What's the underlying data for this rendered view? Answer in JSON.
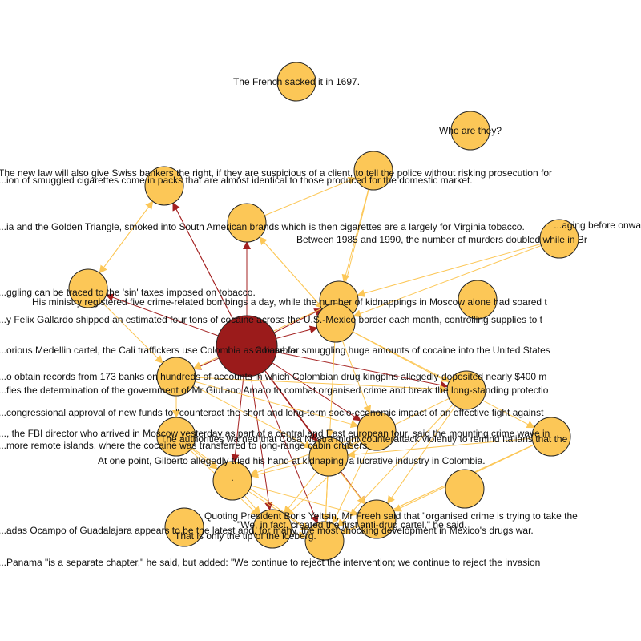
{
  "colors": {
    "center_node": "#9b1b1b",
    "node": "#fcc757",
    "node_stroke": "#222222",
    "edge_center": "#a32020",
    "edge": "#fcc757"
  },
  "nodes": [
    {
      "id": "center",
      "type": "center",
      "label": "Colombia"
    },
    {
      "id": "n1",
      "label": "The French sacked it in 1697."
    },
    {
      "id": "n2",
      "label": "Who are they?"
    },
    {
      "id": "n3",
      "label": "The new law will also give Swiss bankers the right, if they are suspicious of a client, to tell the police without risking prosecution for"
    },
    {
      "id": "n4",
      "label": "...ion of smuggled cigarettes come in packs that are almost identical to those produced for the domestic market."
    },
    {
      "id": "n5",
      "label": "...ia and the Golden Triangle, smoked into South American brands which is then cigarettes are a largely for Virginia tobacco."
    },
    {
      "id": "n6",
      "label": "...aging before onwa"
    },
    {
      "id": "n7",
      "label": "Between 1985 and 1990, the number of murders doubled while in Br"
    },
    {
      "id": "n8",
      "label": "...ggling can be traced to the 'sin' taxes imposed on tobacco."
    },
    {
      "id": "n9",
      "label": "His ministry registered five crime-related bombings a day, while the number of kidnappings in Moscow alone had soared t"
    },
    {
      "id": "n10",
      "label": "...y Felix Gallardo shipped an estimated four tons of cocaine across the U.S.-Mexico border each month, controlling supplies to t"
    },
    {
      "id": "n11",
      "label": "...orious Medellin cartel, the Cali traffickers use Colombia as a base for smuggling huge amounts of cocaine into the United States"
    },
    {
      "id": "n12",
      "label": "...o obtain records from 173 banks on hundreds of accounts in which Colombian drug kingpins allegedly deposited nearly $400 m"
    },
    {
      "id": "n13",
      "label": "...fies the determination of the government of Mr Giuliano Amato to combat organised crime and break the long-standing protectio"
    },
    {
      "id": "n14",
      "label": "...congressional approval of new funds to \"counteract the short and long-term socio-economic impact of an effective fight against"
    },
    {
      "id": "n15",
      "label": "..., the FBI director who arrived in Moscow yesterday as part of a central and East european tour, said the mounting crime wave in"
    },
    {
      "id": "n16",
      "label": "...more remote islands, where the cocaine was transferred to long-range cabin cruisers."
    },
    {
      "id": "n17",
      "label": "The authorities warned that Cosa Nostra might counterattack violently to remind Italians that the"
    },
    {
      "id": "n18",
      "label": "At one point, Gilberto allegedly tried his hand at kidnaping, a lucrative industry in Colombia."
    },
    {
      "id": "n19",
      "label": "."
    },
    {
      "id": "n20",
      "label": "Quoting President Boris Yeltsin, Mr Freeh said that \"organised crime is trying to take the"
    },
    {
      "id": "n21",
      "label": "...adas Ocampo of Guadalajara appears to be the latest and, for many, the most shocking development in Mexico's drugs war."
    },
    {
      "id": "n22",
      "label": "\"We, in fact, created the first anti-drug cartel,\" he said."
    },
    {
      "id": "n23",
      "label": "That is only the tip of the iceberg."
    },
    {
      "id": "n24",
      "label": "...Panama \"is a separate chapter,\" he said, but added: \"We continue to reject the intervention; we continue to reject the invasion"
    },
    {
      "id": "n25",
      "label": ""
    },
    {
      "id": "n26",
      "label": ""
    },
    {
      "id": "n27",
      "label": ""
    },
    {
      "id": "n28",
      "label": ""
    }
  ],
  "edges": [
    [
      "center",
      "n3"
    ],
    [
      "center",
      "n5"
    ],
    [
      "center",
      "n9"
    ],
    [
      "center",
      "n10"
    ],
    [
      "center",
      "n12"
    ],
    [
      "center",
      "n13"
    ],
    [
      "center",
      "n15"
    ],
    [
      "center",
      "n17"
    ],
    [
      "center",
      "n19"
    ],
    [
      "center",
      "n20"
    ],
    [
      "center",
      "n22"
    ],
    [
      "center",
      "n23"
    ],
    [
      "center",
      "n8"
    ],
    [
      "center",
      "n4"
    ],
    [
      "center",
      "n18"
    ],
    [
      "n4",
      "n3"
    ],
    [
      "n4",
      "n8"
    ],
    [
      "n8",
      "n4"
    ],
    [
      "n5",
      "n10"
    ],
    [
      "n5",
      "n27"
    ],
    [
      "n7",
      "n10"
    ],
    [
      "n6",
      "n9"
    ],
    [
      "n9",
      "n10"
    ],
    [
      "n10",
      "n13"
    ],
    [
      "n10",
      "n14"
    ],
    [
      "n10",
      "n15"
    ],
    [
      "n10",
      "n17"
    ],
    [
      "n12",
      "n13"
    ],
    [
      "n12",
      "n15"
    ],
    [
      "n13",
      "n17"
    ],
    [
      "n14",
      "n17"
    ],
    [
      "n14",
      "n20"
    ],
    [
      "n15",
      "n19"
    ],
    [
      "n15",
      "n23"
    ],
    [
      "n15",
      "n24"
    ],
    [
      "n16",
      "n19"
    ],
    [
      "n17",
      "n20"
    ],
    [
      "n17",
      "n22"
    ],
    [
      "n17",
      "n23"
    ],
    [
      "n18",
      "n20"
    ],
    [
      "n18",
      "n24"
    ],
    [
      "n19",
      "n20"
    ],
    [
      "n19",
      "n22"
    ],
    [
      "n19",
      "n23"
    ],
    [
      "n20",
      "n22"
    ],
    [
      "n20",
      "n24"
    ],
    [
      "n22",
      "n24"
    ],
    [
      "n23",
      "n24"
    ],
    [
      "n13",
      "n22"
    ],
    [
      "n12",
      "n17"
    ],
    [
      "n16",
      "n23"
    ],
    [
      "n9",
      "n12"
    ],
    [
      "n10",
      "n5"
    ],
    [
      "n8",
      "n12"
    ],
    [
      "n3",
      "n4"
    ],
    [
      "n27",
      "n10"
    ],
    [
      "n27",
      "n9"
    ],
    [
      "n12",
      "n16"
    ],
    [
      "n16",
      "n22"
    ],
    [
      "n15",
      "n18"
    ],
    [
      "n17",
      "n19"
    ],
    [
      "n18",
      "n22"
    ],
    [
      "n13",
      "n20"
    ],
    [
      "n14",
      "n22"
    ],
    [
      "n14",
      "n24"
    ],
    [
      "n6",
      "n7"
    ]
  ]
}
